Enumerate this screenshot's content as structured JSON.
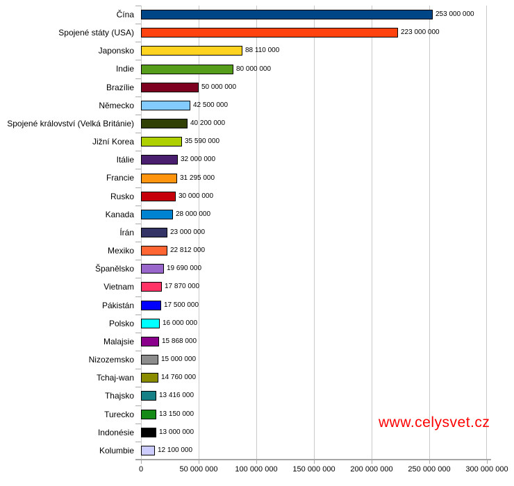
{
  "chart_data": {
    "type": "bar",
    "orientation": "horizontal",
    "title": "",
    "xlabel": "",
    "ylabel": "",
    "xlim": [
      0,
      300000000
    ],
    "grid": "vertical",
    "legend": "none",
    "categories": [
      "Čína",
      "Spojené státy (USA)",
      "Japonsko",
      "Indie",
      "Brazílie",
      "Německo",
      "Spojené království (Velká Británie)",
      "Jižní Korea",
      "Itálie",
      "Francie",
      "Rusko",
      "Kanada",
      "Írán",
      "Mexiko",
      "Španělsko",
      "Vietnam",
      "Pákistán",
      "Polsko",
      "Malajsie",
      "Nizozemsko",
      "Tchaj-wan",
      "Thajsko",
      "Turecko",
      "Indonésie",
      "Kolumbie"
    ],
    "values": [
      253000000,
      223000000,
      88110000,
      80000000,
      50000000,
      42500000,
      40200000,
      35590000,
      32000000,
      31295000,
      30000000,
      28000000,
      23000000,
      22812000,
      19690000,
      17870000,
      17500000,
      16000000,
      15868000,
      15000000,
      14760000,
      13416000,
      13150000,
      13000000,
      12100000
    ],
    "value_labels": [
      "253 000 000",
      "223 000 000",
      "88 110 000",
      "80 000 000",
      "50 000 000",
      "42 500 000",
      "40 200 000",
      "35 590 000",
      "32 000 000",
      "31 295 000",
      "30 000 000",
      "28 000 000",
      "23 000 000",
      "22 812 000",
      "19 690 000",
      "17 870 000",
      "17 500 000",
      "16 000 000",
      "15 868 000",
      "15 000 000",
      "14 760 000",
      "13 416 000",
      "13 150 000",
      "13 000 000",
      "12 100 000"
    ],
    "bar_colors": [
      "#004586",
      "#FF420E",
      "#FFD320",
      "#579D1C",
      "#7E0021",
      "#83CAFF",
      "#314004",
      "#AECF00",
      "#4B1F6F",
      "#FF950E",
      "#C5000B",
      "#0084D1",
      "#333366",
      "#FF6633",
      "#9966CC",
      "#FF3366",
      "#0000FF",
      "#00FFFF",
      "#8B008B",
      "#8C8C8C",
      "#8B8B00",
      "#178087",
      "#168A16",
      "#000000",
      "#CCCCFF"
    ],
    "x_ticks": [
      {
        "value": 0,
        "label": "0"
      },
      {
        "value": 50000000,
        "label": "50 000 000"
      },
      {
        "value": 100000000,
        "label": "100 000 000"
      },
      {
        "value": 150000000,
        "label": "150 000 000"
      },
      {
        "value": 200000000,
        "label": "200 000 000"
      },
      {
        "value": 250000000,
        "label": "250 000 000"
      },
      {
        "value": 300000000,
        "label": "300 000 000"
      }
    ]
  },
  "watermark": {
    "text": "www.celysvet.cz",
    "color": "#FF0000"
  },
  "style_colors": {
    "background": "#FFFFFF",
    "grid": "#C9C9C9",
    "axis": "#A6A6A6",
    "bar_border": "#000000",
    "text": "#000000"
  }
}
